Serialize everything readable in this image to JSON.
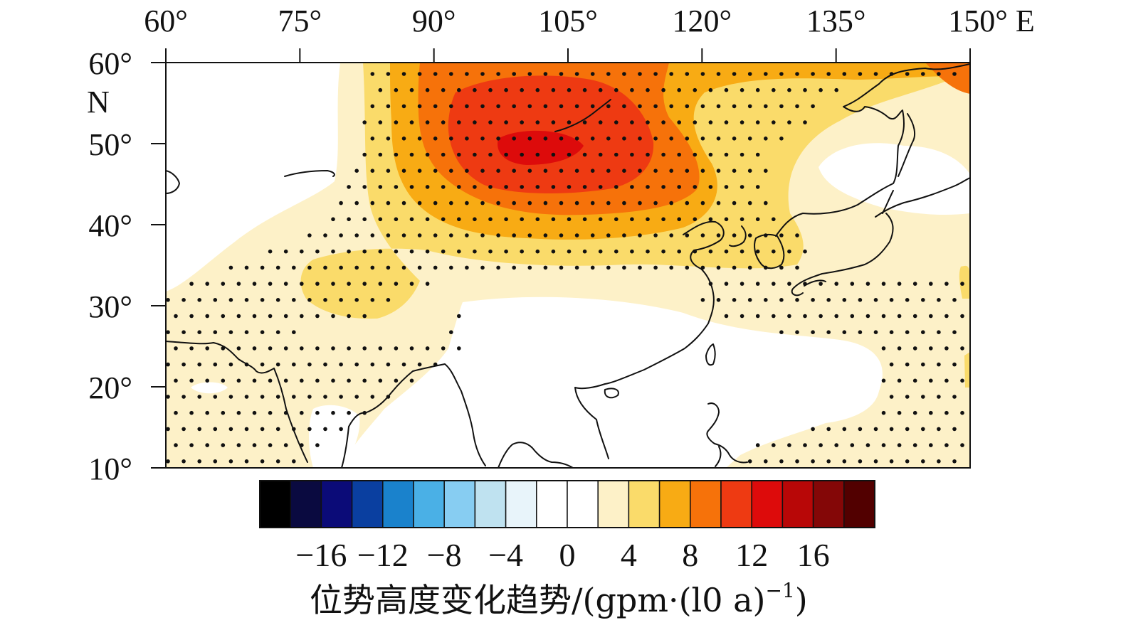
{
  "map": {
    "lon_ticks": [
      {
        "value": 60,
        "label": "60°"
      },
      {
        "value": 75,
        "label": "75°"
      },
      {
        "value": 90,
        "label": "90°"
      },
      {
        "value": 105,
        "label": "105°"
      },
      {
        "value": 120,
        "label": "120°"
      },
      {
        "value": 135,
        "label": "135°"
      },
      {
        "value": 150,
        "label": "150° E"
      }
    ],
    "lat_ticks": [
      {
        "value": 60,
        "label": "60°"
      },
      {
        "value": 50,
        "label": "50°"
      },
      {
        "value": 40,
        "label": "40°"
      },
      {
        "value": 30,
        "label": "30°"
      },
      {
        "value": 20,
        "label": "20°"
      },
      {
        "value": 10,
        "label": "10°"
      }
    ],
    "lat_hemisphere_label": "N",
    "lon_range": [
      60,
      150
    ],
    "lat_range": [
      10,
      60
    ],
    "field": "geopotential height trend",
    "stippling": "significant regions marked with black dots"
  },
  "colorbar": {
    "colors": [
      "#000000",
      "#0a0a40",
      "#0b0b78",
      "#0a3fa0",
      "#1a82cc",
      "#4ab0e6",
      "#87cdf2",
      "#bfe2f0",
      "#e8f4fa",
      "#ffffff",
      "#ffffff",
      "#fdf1c8",
      "#fadb6a",
      "#f8ab14",
      "#f6720a",
      "#ee3a12",
      "#dd0b0b",
      "#b80707",
      "#840707",
      "#520000"
    ],
    "tick_labels": [
      {
        "at": -16,
        "label": "−16"
      },
      {
        "at": -12,
        "label": "−12"
      },
      {
        "at": -8,
        "label": "−8"
      },
      {
        "at": -4,
        "label": "−4"
      },
      {
        "at": 0,
        "label": "0"
      },
      {
        "at": 4,
        "label": "4"
      },
      {
        "at": 8,
        "label": "8"
      },
      {
        "at": 12,
        "label": "12"
      },
      {
        "at": 16,
        "label": "16"
      }
    ],
    "title_text": "位势高度变化趋势/(gpm·(l0 a)",
    "title_sup": "−1",
    "title_close": ")"
  }
}
